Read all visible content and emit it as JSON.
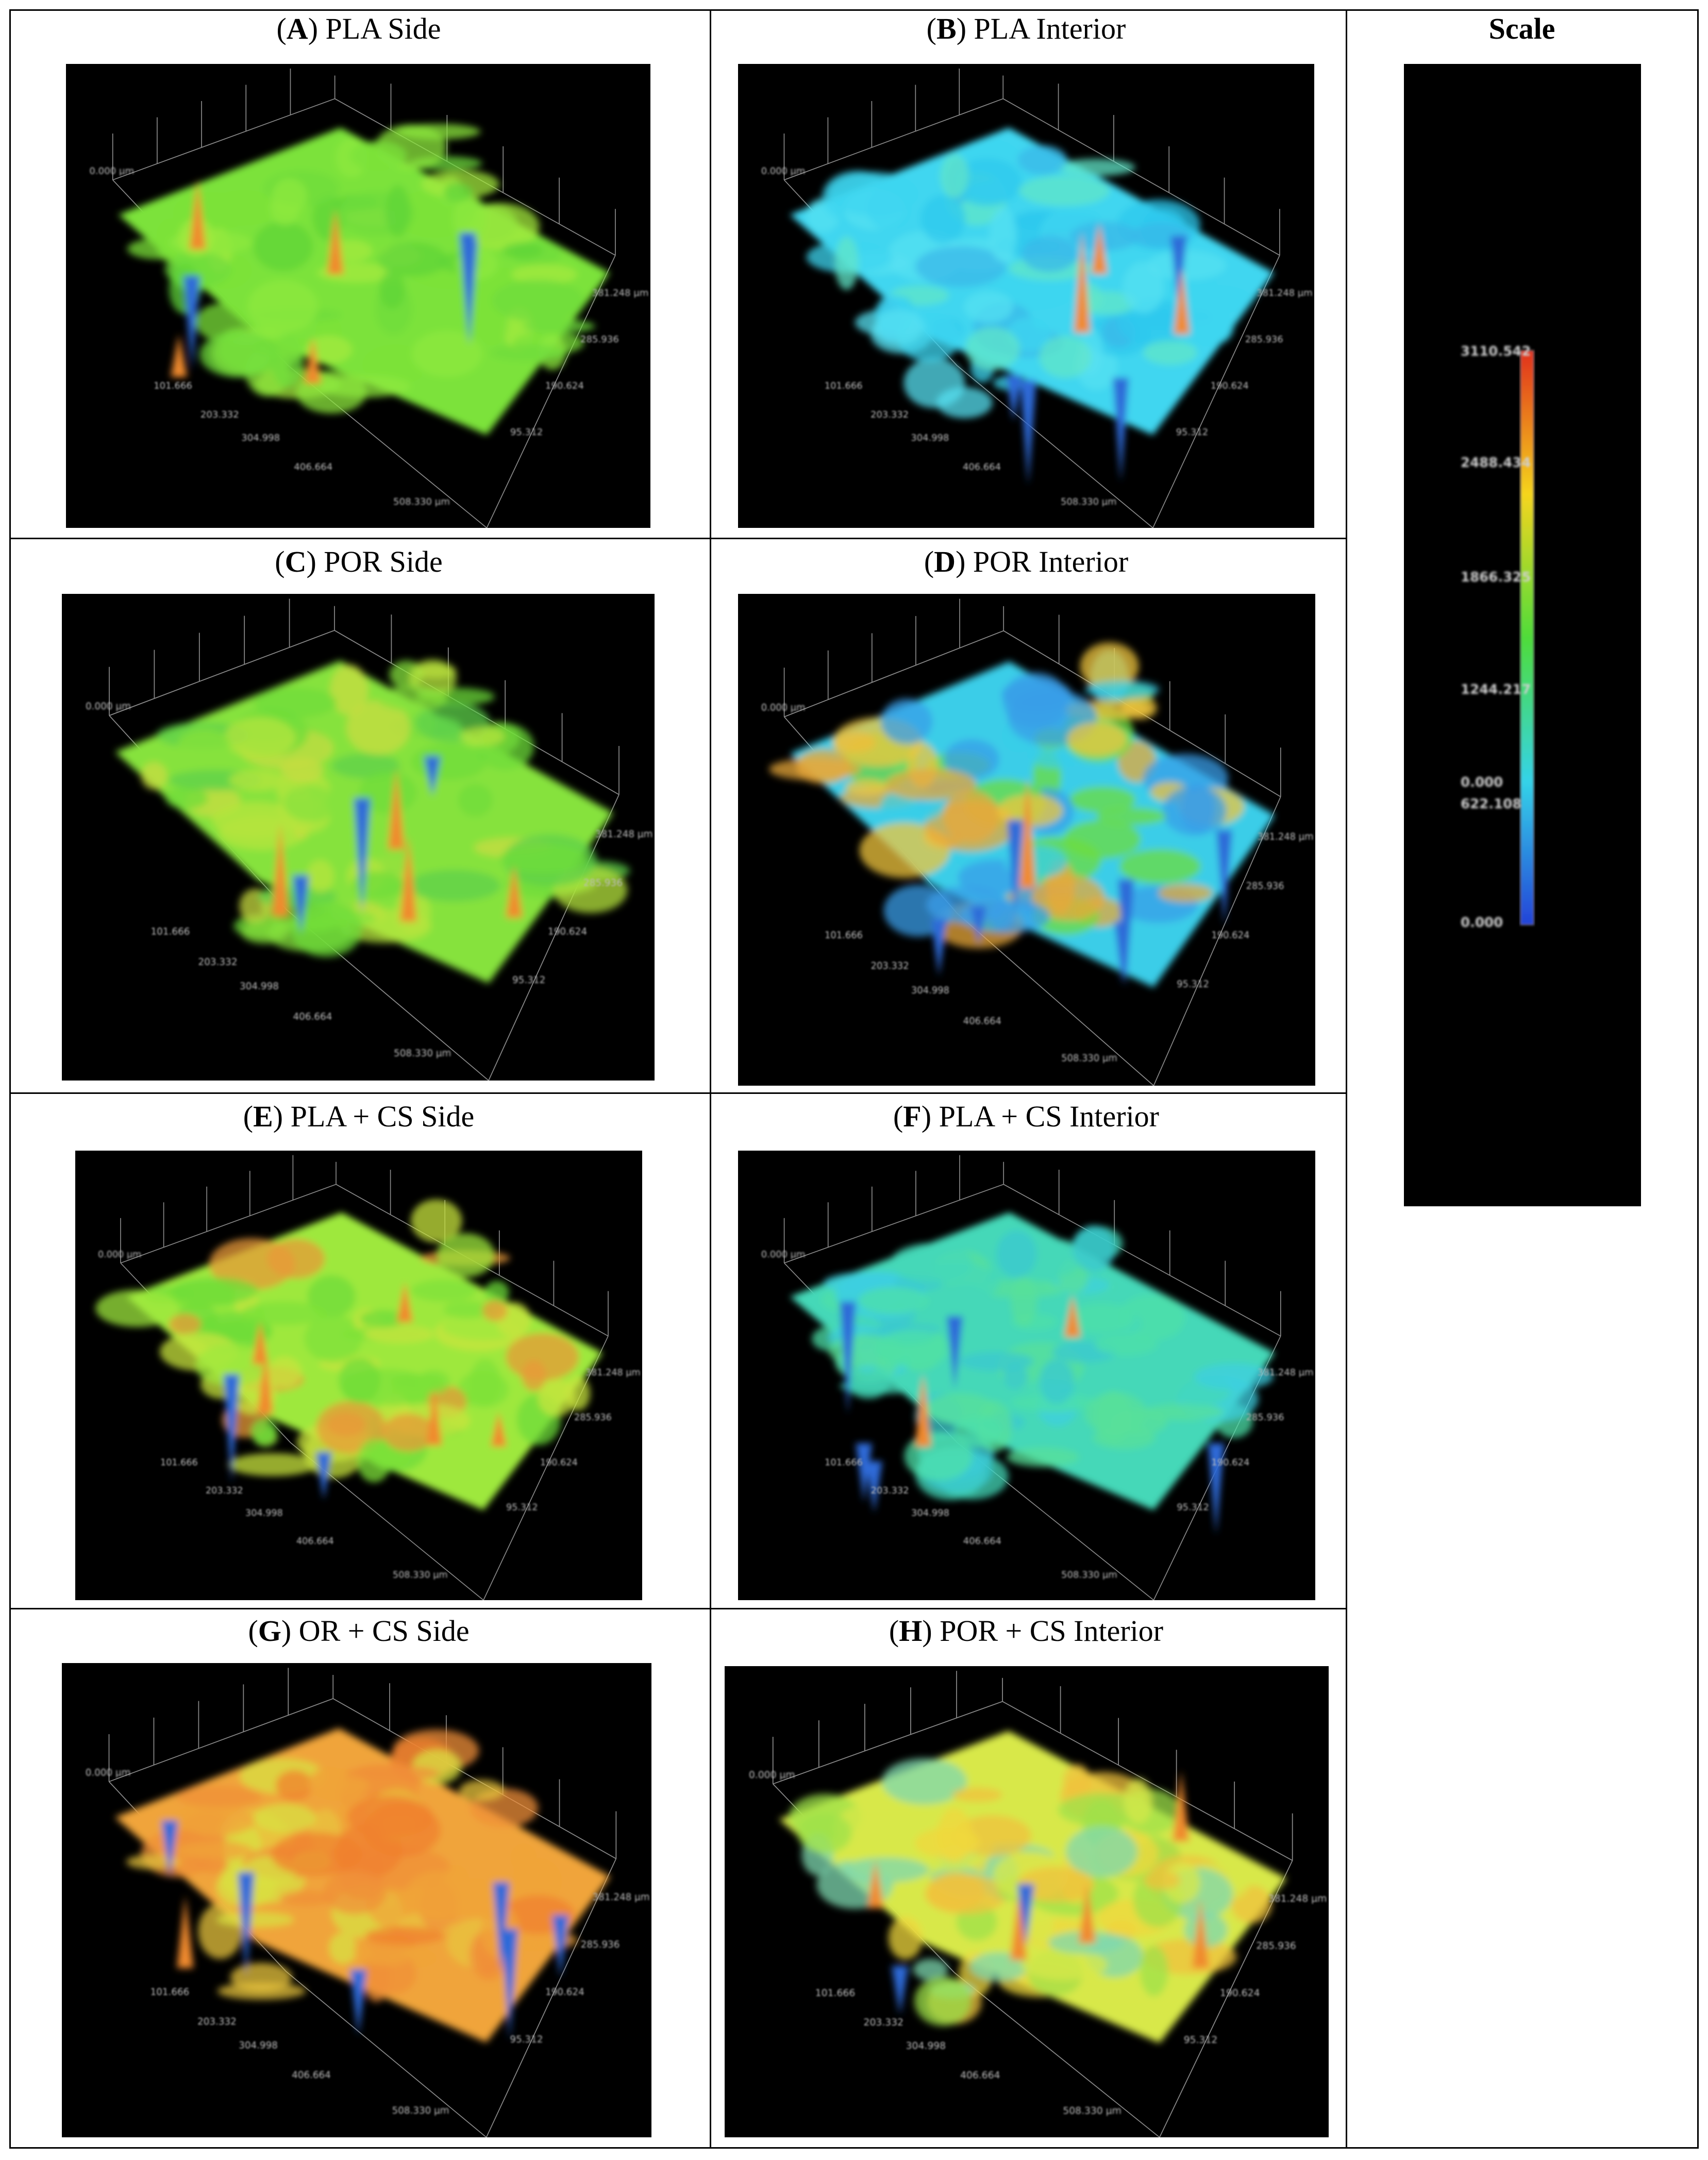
{
  "panels": [
    {
      "letter": "A",
      "title": " PLA Side",
      "variant": "green"
    },
    {
      "letter": "B",
      "title": " PLA Interior",
      "variant": "cyan"
    },
    {
      "letter": "C",
      "title": " POR Side",
      "variant": "green2"
    },
    {
      "letter": "D",
      "title": " POR Interior",
      "variant": "mixed"
    },
    {
      "letter": "E",
      "title": " PLA + CS Side",
      "variant": "greenred"
    },
    {
      "letter": "F",
      "title": " PLA + CS Interior",
      "variant": "teal"
    },
    {
      "letter": "G",
      "title": " OR + CS Side",
      "variant": "orange"
    },
    {
      "letter": "H",
      "title": " POR + CS Interior",
      "variant": "yellow"
    }
  ],
  "scale": {
    "title": "Scale",
    "tick_labels": [
      "3110.542",
      "2488.434",
      "1866.325",
      "1244.217",
      "0.000",
      "622.108",
      "0.000"
    ],
    "colors": [
      "#e0301e",
      "#f5d51e",
      "#4fdc3a",
      "#34d3e8",
      "#2343d8"
    ]
  },
  "axis_labels": [
    "101.666",
    "203.332",
    "304.998",
    "406.664",
    "508.330 µm",
    "95.312",
    "190.624",
    "285.936",
    "381.248 µm",
    "0.000 µm"
  ]
}
